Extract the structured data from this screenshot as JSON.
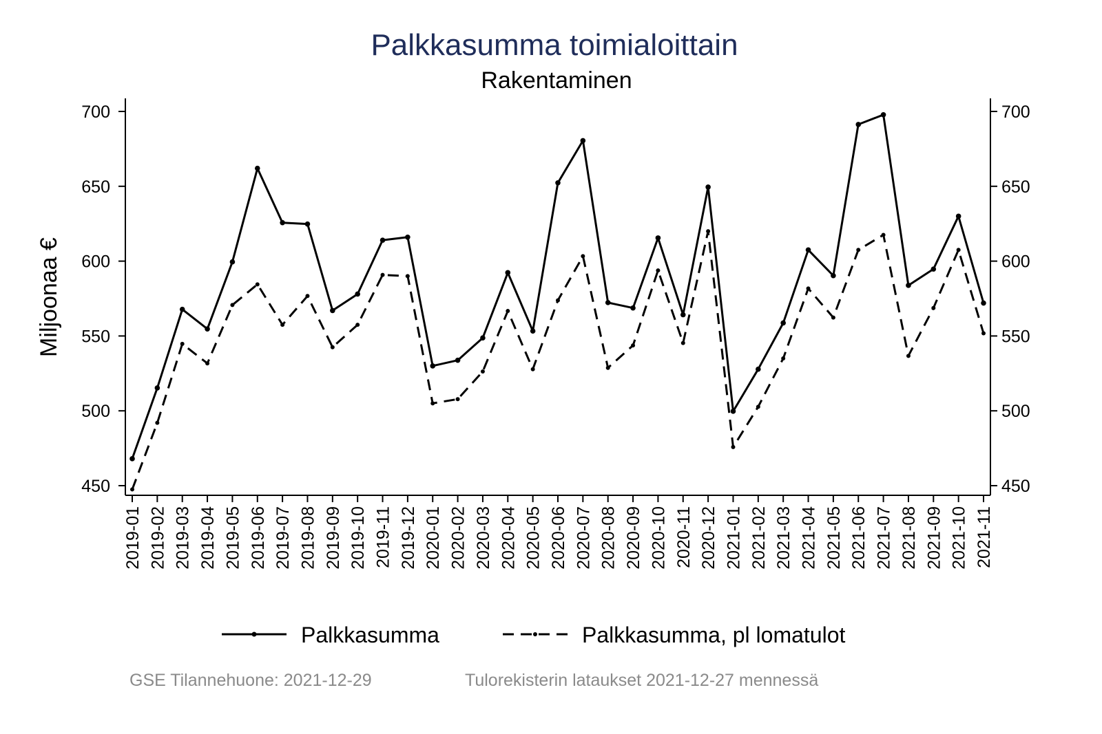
{
  "chart_data": {
    "type": "line",
    "title": "Palkkasumma toimialoittain",
    "subtitle": "Rakentaminen",
    "xlabel": "",
    "ylabel": "Miljoonaa €",
    "ylim": [
      440,
      705
    ],
    "yticks": [
      450,
      500,
      550,
      600,
      650,
      700
    ],
    "grid": false,
    "legend_position": "bottom",
    "colors": {
      "title": "#1f2d5a",
      "line": "#000000",
      "footer": "#8a8a8a"
    },
    "x": [
      "2019-01",
      "2019-02",
      "2019-03",
      "2019-04",
      "2019-05",
      "2019-06",
      "2019-07",
      "2019-08",
      "2019-09",
      "2019-10",
      "2019-11",
      "2019-12",
      "2020-01",
      "2020-02",
      "2020-03",
      "2020-04",
      "2020-05",
      "2020-06",
      "2020-07",
      "2020-08",
      "2020-09",
      "2020-10",
      "2020-11",
      "2020-12",
      "2021-01",
      "2021-02",
      "2021-03",
      "2021-04",
      "2021-05",
      "2021-06",
      "2021-07",
      "2021-08",
      "2021-09",
      "2021-10",
      "2021-11"
    ],
    "series": [
      {
        "name": "Palkkasumma",
        "style": "solid",
        "values": [
          468.0,
          515.3,
          567.8,
          554.7,
          599.5,
          662.0,
          625.7,
          624.8,
          567.0,
          578.0,
          614.0,
          616.0,
          530.0,
          533.8,
          548.7,
          592.3,
          553.3,
          652.3,
          680.5,
          572.3,
          568.7,
          615.5,
          564.2,
          649.5,
          499.7,
          527.8,
          558.7,
          607.5,
          590.3,
          691.3,
          697.8,
          583.8,
          594.7,
          630.0,
          572.0
        ]
      },
      {
        "name": "Palkkasumma, pl lomatulot",
        "style": "dashed",
        "values": [
          447.5,
          492.0,
          544.7,
          531.7,
          570.7,
          584.5,
          557.5,
          576.7,
          542.5,
          557.5,
          590.8,
          590.0,
          505.0,
          507.8,
          526.3,
          566.7,
          527.8,
          573.8,
          603.3,
          528.7,
          543.7,
          593.8,
          545.3,
          620.0,
          475.8,
          502.7,
          535.0,
          581.7,
          562.3,
          607.5,
          617.5,
          536.7,
          568.7,
          607.5,
          551.8
        ]
      }
    ]
  },
  "footer": {
    "left": "GSE Tilannehuone: 2021-12-29",
    "right": "Tulorekisterin lataukset 2021-12-27 mennessä"
  }
}
